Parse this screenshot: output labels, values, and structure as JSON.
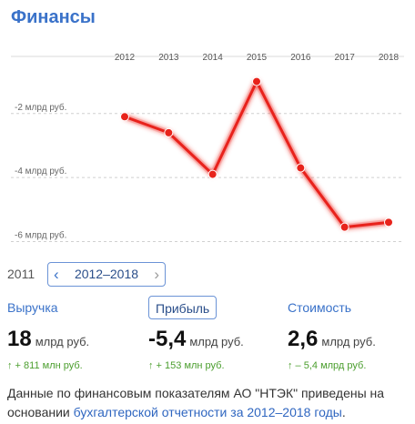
{
  "page": {
    "title": "Финансы"
  },
  "chart_data": {
    "type": "line",
    "categories": [
      "2012",
      "2013",
      "2014",
      "2015",
      "2016",
      "2017",
      "2018"
    ],
    "values": [
      -2.1,
      -2.6,
      -3.9,
      -1.0,
      -3.7,
      -5.55,
      -5.4
    ],
    "ytick_values": [
      -2,
      -4,
      -6
    ],
    "ytick_labels": [
      "-2 млрд руб.",
      "-4 млрд руб.",
      "-6 млрд руб."
    ],
    "ylim": [
      -6.3,
      -0.5
    ],
    "line_color": "#e8231b",
    "grid": "horizontal-dashed",
    "title": "",
    "xlabel": "",
    "ylabel": ""
  },
  "range": {
    "prev_year": "2011",
    "label": "2012–2018",
    "prev_icon": "chevron-left-icon",
    "next_icon": "chevron-right-icon"
  },
  "metrics": [
    {
      "label": "Выручка",
      "value": "18",
      "unit": "млрд руб.",
      "delta": "↑ + 811 млн руб.",
      "active": false
    },
    {
      "label": "Прибыль",
      "value": "-5,4",
      "unit": "млрд руб.",
      "delta": "↑ + 153 млн руб.",
      "active": true
    },
    {
      "label": "Стоимость",
      "value": "2,6",
      "unit": "млрд руб.",
      "delta": "↑ – 5,4 млрд руб.",
      "active": false
    }
  ],
  "footer": {
    "text": "Данные по финансовым показателям АО \"НТЭК\" приведены на основании ",
    "link": "бухгалтерской отчетности за 2012–2018 годы",
    "end": "."
  },
  "colors": {
    "accent": "#3a72c9",
    "positive": "#4b9e2e",
    "line": "#e8231b"
  }
}
